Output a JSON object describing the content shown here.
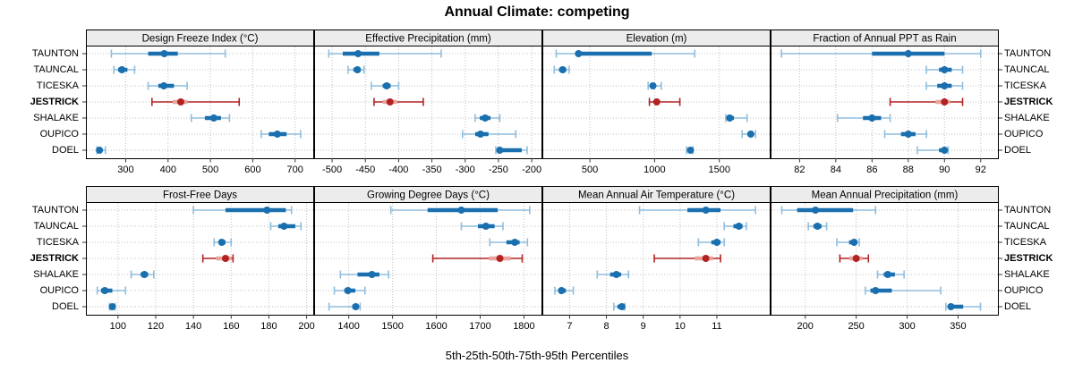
{
  "title": "Annual Climate: competing",
  "caption": "5th-25th-50th-75th-95th Percentiles",
  "stations": [
    "TAUNTON",
    "TAUNCAL",
    "TICESKA",
    "JESTRICK",
    "SHALAKE",
    "OUPICO",
    "DOEL"
  ],
  "highlighted_station": "JESTRICK",
  "percentile_levels": [
    "5th",
    "25th",
    "50th",
    "75th",
    "95th"
  ],
  "colors": {
    "blue_dark": "#1a6fae",
    "blue_light": "#8fbedd",
    "red_dark": "#b22222",
    "red_light": "#e8a59e",
    "strip_bg": "#ececec",
    "grid": "#bfbfbf",
    "border": "#000000",
    "tick": "#333333"
  },
  "chart_data": [
    {
      "type": "dot-range",
      "title": "Design Freeze Index (°C)",
      "row": "top",
      "xlim": [
        206,
        745
      ],
      "ticks": [
        300,
        400,
        500,
        600,
        700
      ],
      "series": [
        {
          "name": "TAUNTON",
          "p": [
            266,
            353,
            391,
            423,
            535
          ]
        },
        {
          "name": "TAUNCAL",
          "p": [
            272,
            282,
            291,
            304,
            321
          ]
        },
        {
          "name": "TICESKA",
          "p": [
            353,
            377,
            390,
            414,
            445
          ]
        },
        {
          "name": "JESTRICK",
          "p": [
            362,
            411,
            430,
            446,
            568
          ]
        },
        {
          "name": "SHALAKE",
          "p": [
            455,
            487,
            508,
            525,
            545
          ]
        },
        {
          "name": "OUPICO",
          "p": [
            620,
            638,
            658,
            680,
            713
          ]
        },
        {
          "name": "DOEL",
          "p": [
            232,
            235,
            238,
            242,
            252
          ]
        }
      ]
    },
    {
      "type": "dot-range",
      "title": "Effective Precipitation (mm)",
      "row": "top",
      "xlim": [
        -527,
        -184
      ],
      "ticks": [
        -500,
        -450,
        -400,
        -350,
        -300,
        -250,
        -200
      ],
      "series": [
        {
          "name": "TAUNTON",
          "p": [
            -505,
            -484,
            -461,
            -429,
            -336
          ]
        },
        {
          "name": "TAUNCAL",
          "p": [
            -476,
            -468,
            -462,
            -457,
            -452
          ]
        },
        {
          "name": "TICESKA",
          "p": [
            -441,
            -424,
            -418,
            -412,
            -400
          ]
        },
        {
          "name": "JESTRICK",
          "p": [
            -437,
            -424,
            -413,
            -402,
            -363
          ]
        },
        {
          "name": "SHALAKE",
          "p": [
            -285,
            -278,
            -270,
            -262,
            -248
          ]
        },
        {
          "name": "OUPICO",
          "p": [
            -304,
            -285,
            -277,
            -265,
            -224
          ]
        },
        {
          "name": "DOEL",
          "p": [
            -254,
            -250,
            -248,
            -215,
            -207
          ]
        }
      ]
    },
    {
      "type": "dot-range",
      "title": "Elevation (m)",
      "row": "top",
      "xlim": [
        133,
        1896
      ],
      "ticks": [
        500,
        1000,
        1500
      ],
      "series": [
        {
          "name": "TAUNTON",
          "p": [
            240,
            405,
            412,
            978,
            1310
          ]
        },
        {
          "name": "TAUNCAL",
          "p": [
            225,
            262,
            290,
            317,
            340
          ]
        },
        {
          "name": "TICESKA",
          "p": [
            950,
            972,
            987,
            1002,
            1051
          ]
        },
        {
          "name": "JESTRICK",
          "p": [
            960,
            1000,
            1016,
            1042,
            1195
          ]
        },
        {
          "name": "SHALAKE",
          "p": [
            1550,
            1562,
            1580,
            1613,
            1714
          ]
        },
        {
          "name": "OUPICO",
          "p": [
            1676,
            1718,
            1743,
            1762,
            1780
          ]
        },
        {
          "name": "DOEL",
          "p": [
            1247,
            1262,
            1277,
            1285,
            1297
          ]
        }
      ]
    },
    {
      "type": "dot-range",
      "title": "Fraction of Annual PPT as Rain",
      "row": "top",
      "xlim": [
        80.4,
        93.0
      ],
      "ticks": [
        82,
        84,
        86,
        88,
        90,
        92
      ],
      "series": [
        {
          "name": "TAUNTON",
          "p": [
            81.0,
            86.0,
            88.0,
            90.0,
            92.0
          ]
        },
        {
          "name": "TAUNCAL",
          "p": [
            89.0,
            89.7,
            90.0,
            90.4,
            91.0
          ]
        },
        {
          "name": "TICESKA",
          "p": [
            89.0,
            89.6,
            90.0,
            90.4,
            91.0
          ]
        },
        {
          "name": "JESTRICK",
          "p": [
            87.0,
            89.5,
            90.0,
            90.3,
            91.0
          ]
        },
        {
          "name": "SHALAKE",
          "p": [
            84.1,
            85.5,
            86.0,
            86.5,
            87.0
          ]
        },
        {
          "name": "OUPICO",
          "p": [
            86.7,
            87.6,
            88.0,
            88.4,
            89.0
          ]
        },
        {
          "name": "DOEL",
          "p": [
            88.5,
            89.7,
            90.0,
            90.1,
            90.2
          ]
        }
      ]
    },
    {
      "type": "dot-range",
      "title": "Frost-Free Days",
      "row": "bottom",
      "xlim": [
        83,
        204
      ],
      "ticks": [
        100,
        120,
        140,
        160,
        180,
        200
      ],
      "series": [
        {
          "name": "TAUNTON",
          "p": [
            140,
            157,
            179,
            189,
            192
          ]
        },
        {
          "name": "TAUNCAL",
          "p": [
            181,
            185,
            188,
            194,
            197
          ]
        },
        {
          "name": "TICESKA",
          "p": [
            151,
            154,
            155,
            157,
            160
          ]
        },
        {
          "name": "JESTRICK",
          "p": [
            145,
            152,
            157,
            160,
            161
          ]
        },
        {
          "name": "SHALAKE",
          "p": [
            107,
            112,
            114,
            116,
            119
          ]
        },
        {
          "name": "OUPICO",
          "p": [
            89,
            91,
            93,
            97,
            104
          ]
        },
        {
          "name": "DOEL",
          "p": [
            95.5,
            96,
            97,
            97.5,
            98.5
          ]
        }
      ]
    },
    {
      "type": "dot-range",
      "title": "Growing Degree Days (°C)",
      "row": "bottom",
      "xlim": [
        1321,
        1842
      ],
      "ticks": [
        1400,
        1500,
        1600,
        1700,
        1800
      ],
      "series": [
        {
          "name": "TAUNTON",
          "p": [
            1496,
            1580,
            1657,
            1740,
            1813
          ]
        },
        {
          "name": "TAUNCAL",
          "p": [
            1657,
            1695,
            1713,
            1733,
            1752
          ]
        },
        {
          "name": "TICESKA",
          "p": [
            1722,
            1760,
            1779,
            1790,
            1808
          ]
        },
        {
          "name": "JESTRICK",
          "p": [
            1592,
            1720,
            1745,
            1770,
            1796
          ]
        },
        {
          "name": "SHALAKE",
          "p": [
            1381,
            1420,
            1453,
            1470,
            1491
          ]
        },
        {
          "name": "OUPICO",
          "p": [
            1367,
            1390,
            1398,
            1415,
            1437
          ]
        },
        {
          "name": "DOEL",
          "p": [
            1355,
            1408,
            1416,
            1421,
            1426
          ]
        }
      ]
    },
    {
      "type": "dot-range",
      "title": "Mean Annual Air Temperature (°C)",
      "row": "bottom",
      "xlim": [
        6.26,
        12.46
      ],
      "ticks": [
        7,
        8,
        9,
        10,
        11
      ],
      "series": [
        {
          "name": "TAUNTON",
          "p": [
            8.9,
            10.2,
            10.7,
            11.1,
            12.05
          ]
        },
        {
          "name": "TAUNCAL",
          "p": [
            11.2,
            11.45,
            11.6,
            11.7,
            11.8
          ]
        },
        {
          "name": "TICESKA",
          "p": [
            10.5,
            10.85,
            11.0,
            11.1,
            11.2
          ]
        },
        {
          "name": "JESTRICK",
          "p": [
            9.3,
            10.4,
            10.7,
            10.9,
            11.1
          ]
        },
        {
          "name": "SHALAKE",
          "p": [
            7.75,
            8.1,
            8.27,
            8.4,
            8.6
          ]
        },
        {
          "name": "OUPICO",
          "p": [
            6.6,
            6.7,
            6.78,
            6.9,
            7.1
          ]
        },
        {
          "name": "DOEL",
          "p": [
            8.2,
            8.3,
            8.42,
            8.45,
            8.5
          ]
        }
      ]
    },
    {
      "type": "dot-range",
      "title": "Mean Annual Precipitation (mm)",
      "row": "bottom",
      "xlim": [
        166,
        390
      ],
      "ticks": [
        200,
        250,
        300,
        350
      ],
      "series": [
        {
          "name": "TAUNTON",
          "p": [
            177,
            192,
            210,
            247,
            269
          ]
        },
        {
          "name": "TAUNCAL",
          "p": [
            203,
            208,
            212,
            216,
            221
          ]
        },
        {
          "name": "TICESKA",
          "p": [
            231,
            243,
            248,
            250,
            253
          ]
        },
        {
          "name": "JESTRICK",
          "p": [
            234,
            243,
            250,
            256,
            262
          ]
        },
        {
          "name": "SHALAKE",
          "p": [
            271,
            277,
            281,
            288,
            297
          ]
        },
        {
          "name": "OUPICO",
          "p": [
            259,
            264,
            269,
            285,
            333
          ]
        },
        {
          "name": "DOEL",
          "p": [
            338,
            340,
            343,
            355,
            372
          ]
        }
      ]
    }
  ]
}
